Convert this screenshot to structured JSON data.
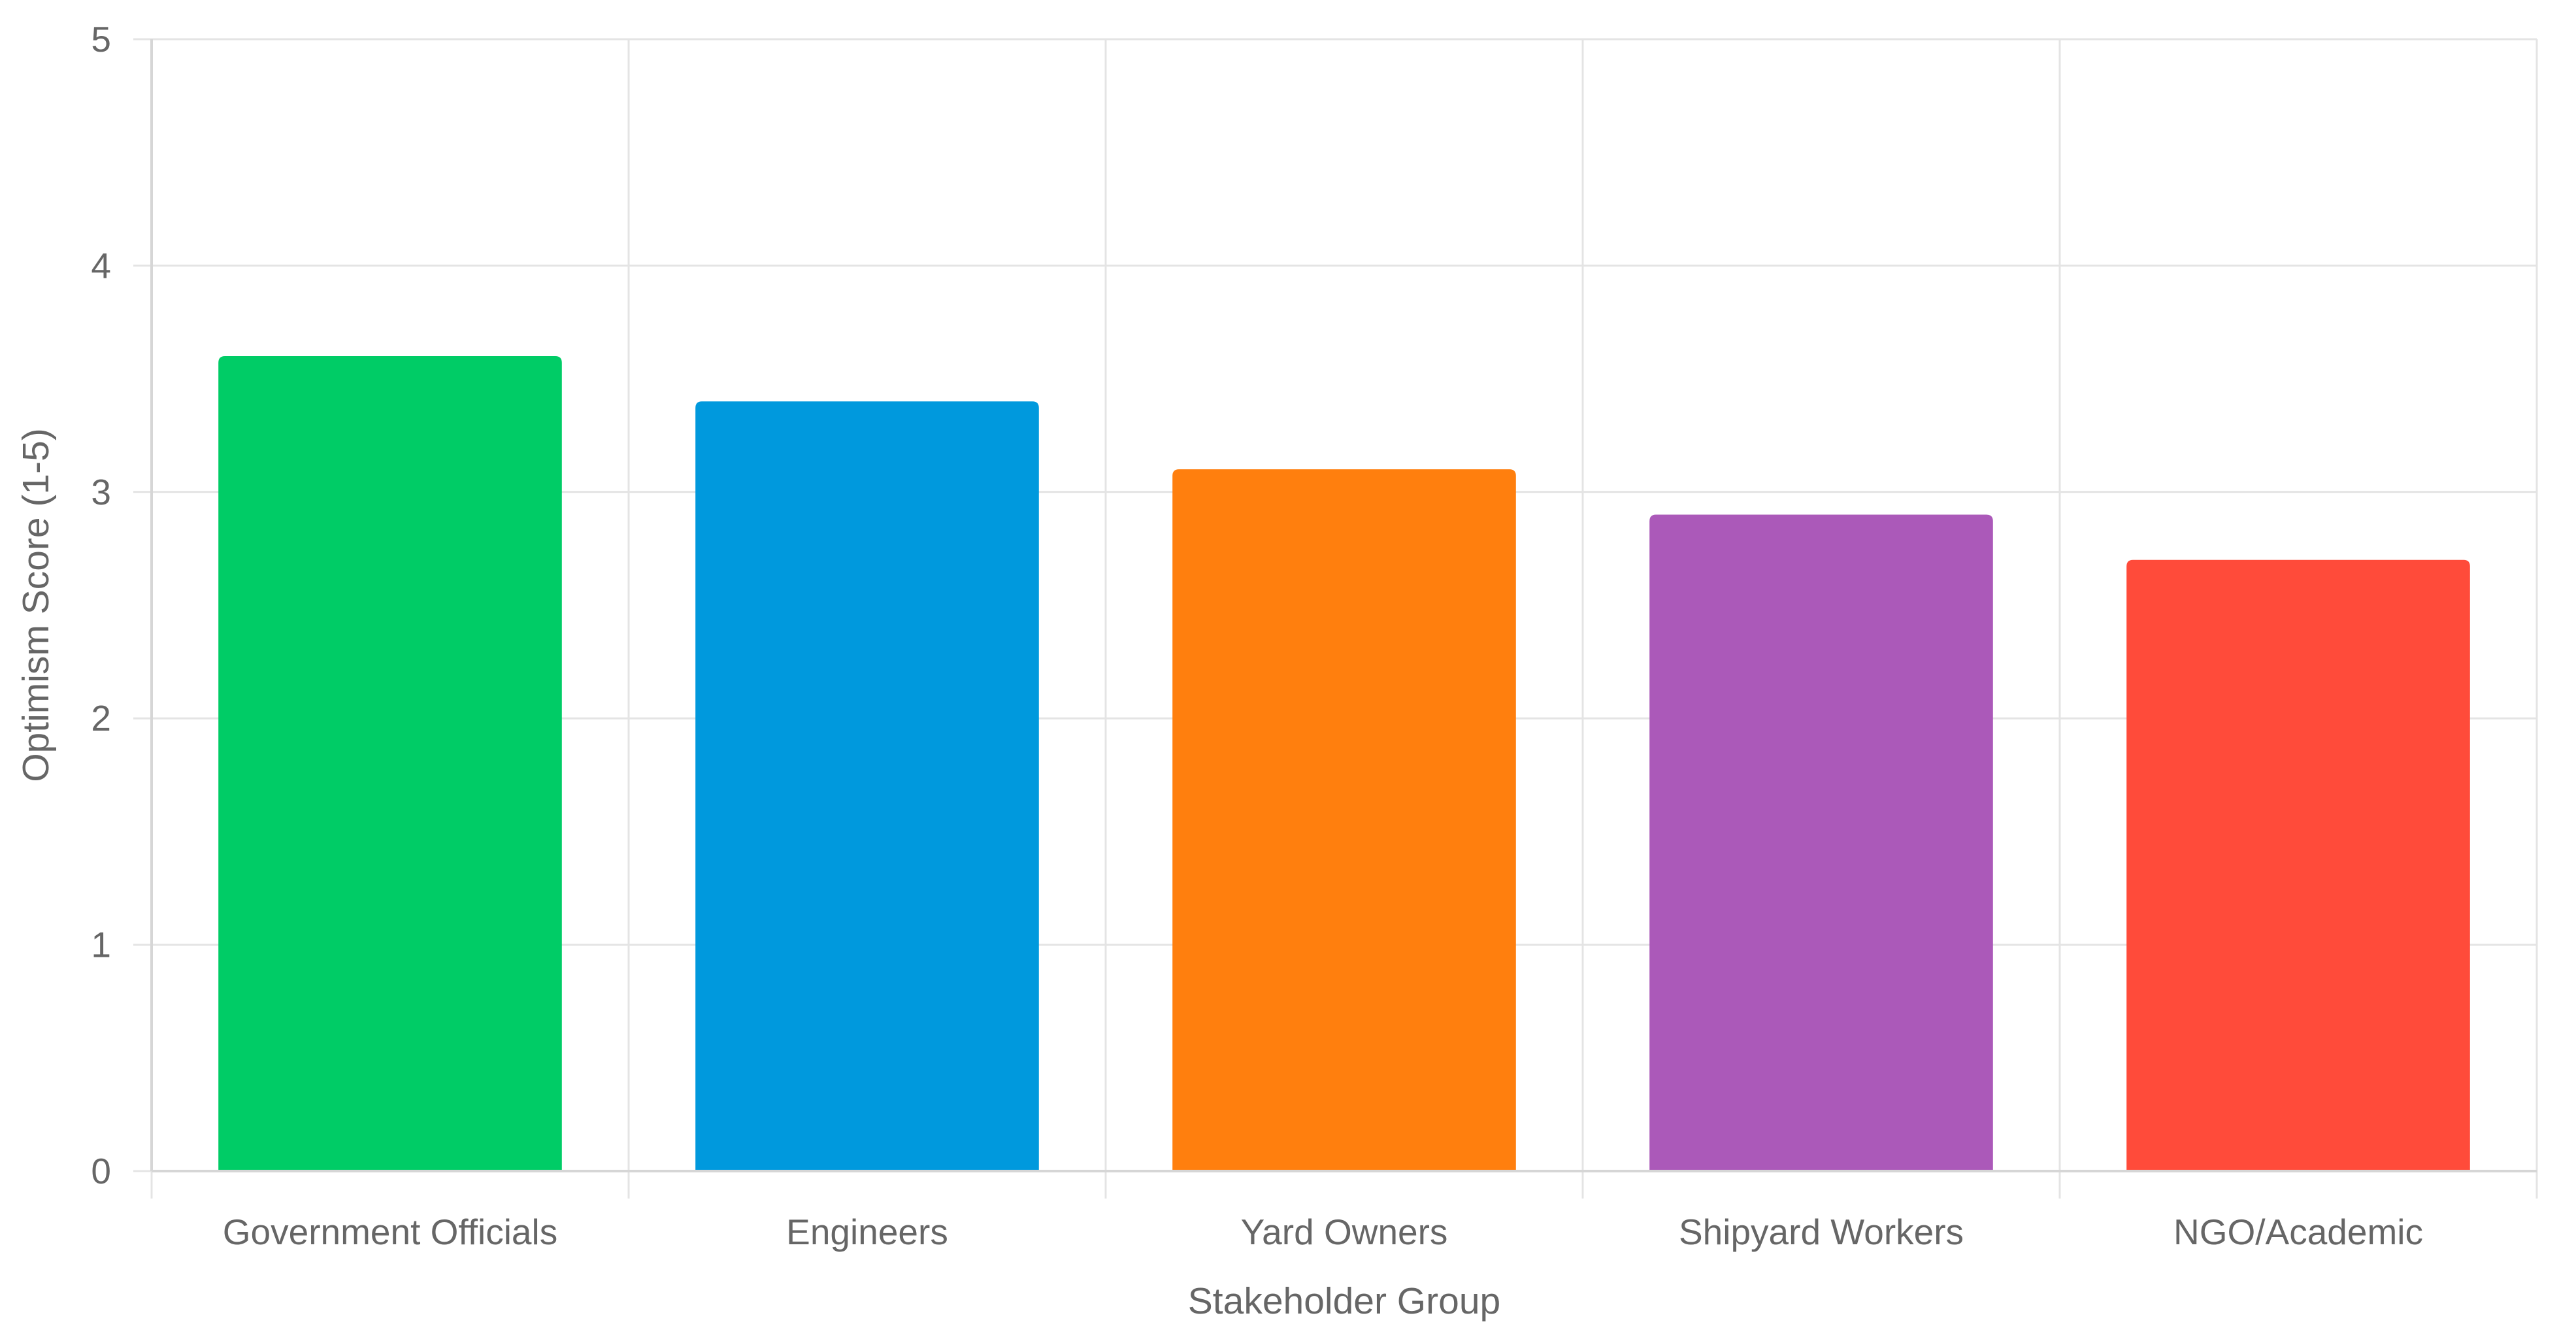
{
  "chart_data": {
    "type": "bar",
    "title": "",
    "xlabel": "Stakeholder Group",
    "ylabel": "Optimism Score (1-5)",
    "ylim": [
      0,
      5
    ],
    "y_ticks": [
      0,
      1,
      2,
      3,
      4,
      5
    ],
    "grid": true,
    "legend": "none",
    "categories": [
      "Government Officials",
      "Engineers",
      "Yard Owners",
      "Shipyard Workers",
      "NGO/Academic"
    ],
    "values": [
      3.6,
      3.4,
      3.1,
      2.9,
      2.7
    ],
    "colors": [
      "#00cc66",
      "#0099dd",
      "#ff7f0e",
      "#ab59b9",
      "#ff4b3a"
    ]
  }
}
